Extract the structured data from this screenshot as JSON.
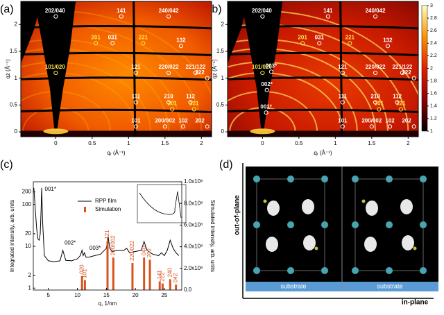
{
  "panel_labels": [
    "(a)",
    "(b)",
    "(c)",
    "(d)"
  ],
  "diagram": {
    "y_axis": "out-of-plane",
    "x_axis": "in-plane",
    "substrates": [
      "substrate",
      "substrate"
    ]
  },
  "chart_data": [
    {
      "type": "heatmap",
      "xlabel": "qᵣ (Å⁻¹)",
      "ylabel": "qz (Å⁻¹)",
      "xlim": [
        -0.48,
        2.14
      ],
      "ylim": [
        -0.09,
        2.43
      ],
      "xticks": [
        0,
        0.5,
        1,
        1.5,
        2
      ],
      "yticks": [
        0,
        0.5,
        1,
        1.5,
        2
      ],
      "peaks": [
        {
          "label": "202/040",
          "x": 0,
          "y": 2.15,
          "color": "#ffffff"
        },
        {
          "label": "141",
          "x": 0.9,
          "y": 2.15,
          "color": "#ffffff"
        },
        {
          "label": "240/042",
          "x": 1.55,
          "y": 2.15,
          "color": "#ffffff"
        },
        {
          "label": "201",
          "x": 0.55,
          "y": 1.65,
          "color": "#ffe84a"
        },
        {
          "label": "031",
          "x": 0.78,
          "y": 1.65,
          "color": "#ffffff"
        },
        {
          "label": "221",
          "x": 1.2,
          "y": 1.65,
          "color": "#ffe84a"
        },
        {
          "label": "132",
          "x": 1.72,
          "y": 1.6,
          "color": "#ffffff"
        },
        {
          "label": "101/020",
          "x": 0,
          "y": 1.1,
          "color": "#ffe84a"
        },
        {
          "label": "121",
          "x": 1.1,
          "y": 1.1,
          "color": "#ffffff"
        },
        {
          "label": "220/022",
          "x": 1.55,
          "y": 1.1,
          "color": "#ffffff"
        },
        {
          "label": "221/122",
          "x": 1.92,
          "y": 1.1,
          "color": "#ffffff"
        },
        {
          "label": "222",
          "x": 2.08,
          "y": 1.0,
          "color": "#ffffff"
        },
        {
          "label": "111",
          "x": 1.1,
          "y": 0.55,
          "color": "#ffffff"
        },
        {
          "label": "210",
          "x": 1.55,
          "y": 0.55,
          "color": "#ffffff"
        },
        {
          "label": "112",
          "x": 1.85,
          "y": 0.55,
          "color": "#ffffff"
        },
        {
          "label": "201",
          "x": 1.6,
          "y": 0.42,
          "color": "#ffe84a"
        },
        {
          "label": "221",
          "x": 1.9,
          "y": 0.42,
          "color": "#ffe84a"
        },
        {
          "label": "101",
          "x": 1.1,
          "y": 0.1,
          "color": "#ffffff"
        },
        {
          "label": "200/002",
          "x": 1.5,
          "y": 0.1,
          "color": "#ffffff"
        },
        {
          "label": "102",
          "x": 1.75,
          "y": 0.1,
          "color": "#ffffff"
        },
        {
          "label": "202",
          "x": 2.08,
          "y": 0.1,
          "color": "#ffffff"
        }
      ]
    },
    {
      "type": "heatmap",
      "xlabel": "qᵣ (Å⁻¹)",
      "ylabel": "qz (Å⁻¹)",
      "xlim": [
        -0.48,
        2.14
      ],
      "ylim": [
        -0.09,
        2.43
      ],
      "xticks": [
        0,
        0.5,
        1,
        1.5,
        2
      ],
      "yticks": [
        0,
        0.5,
        1,
        1.5,
        2
      ],
      "colorbar": {
        "lim": [
          1,
          3
        ],
        "ticks": [
          1,
          1.2,
          1.4,
          1.6,
          1.8,
          2,
          2.2,
          2.4,
          2.6,
          2.8,
          3
        ]
      },
      "peaks": [
        {
          "label": "202/040",
          "x": 0,
          "y": 2.15,
          "color": "#ffffff"
        },
        {
          "label": "141",
          "x": 0.9,
          "y": 2.15,
          "color": "#ffffff"
        },
        {
          "label": "240/042",
          "x": 1.55,
          "y": 2.15,
          "color": "#ffffff"
        },
        {
          "label": "201",
          "x": 0.55,
          "y": 1.65,
          "color": "#ffe84a"
        },
        {
          "label": "031",
          "x": 0.78,
          "y": 1.65,
          "color": "#ffffff"
        },
        {
          "label": "221",
          "x": 1.2,
          "y": 1.65,
          "color": "#ffe84a"
        },
        {
          "label": "132",
          "x": 1.72,
          "y": 1.6,
          "color": "#ffffff"
        },
        {
          "label": "101/020",
          "x": 0,
          "y": 1.1,
          "color": "#ffe84a"
        },
        {
          "label": "003*",
          "x": 0.12,
          "y": 1.12,
          "color": "#ffffff"
        },
        {
          "label": "002*",
          "x": 0.06,
          "y": 0.78,
          "color": "#ffffff"
        },
        {
          "label": "001*",
          "x": 0.05,
          "y": 0.36,
          "color": "#ffffff"
        },
        {
          "label": "121",
          "x": 1.1,
          "y": 1.1,
          "color": "#ffffff"
        },
        {
          "label": "220/022",
          "x": 1.55,
          "y": 1.1,
          "color": "#ffffff"
        },
        {
          "label": "221/122",
          "x": 1.92,
          "y": 1.1,
          "color": "#ffffff"
        },
        {
          "label": "222",
          "x": 2.08,
          "y": 1.0,
          "color": "#ffffff"
        },
        {
          "label": "111",
          "x": 1.1,
          "y": 0.55,
          "color": "#ffffff"
        },
        {
          "label": "210",
          "x": 1.55,
          "y": 0.55,
          "color": "#ffffff"
        },
        {
          "label": "112",
          "x": 1.85,
          "y": 0.55,
          "color": "#ffffff"
        },
        {
          "label": "201",
          "x": 1.6,
          "y": 0.42,
          "color": "#ffe84a"
        },
        {
          "label": "221",
          "x": 1.9,
          "y": 0.42,
          "color": "#ffe84a"
        },
        {
          "label": "101",
          "x": 1.1,
          "y": 0.1,
          "color": "#ffffff"
        },
        {
          "label": "200/002",
          "x": 1.5,
          "y": 0.1,
          "color": "#ffffff"
        },
        {
          "label": "102",
          "x": 1.75,
          "y": 0.1,
          "color": "#ffffff"
        },
        {
          "label": "202",
          "x": 2.08,
          "y": 0.1,
          "color": "#ffffff"
        }
      ]
    },
    {
      "type": "line",
      "xlabel": "q, 1/nm",
      "ylabel": "Integrated intensity, arb. units",
      "y2label": "Simulated intensity, arb. units",
      "xlim": [
        2.4,
        28
      ],
      "xticks": [
        5,
        10,
        15,
        20,
        25
      ],
      "ylim": [
        0.9,
        350
      ],
      "yticks": [
        1,
        2,
        10,
        20,
        100,
        200
      ],
      "log_y": true,
      "y2lim": [
        0,
        1000000000
      ],
      "y2ticks": [
        {
          "value": 0,
          "label": "0.0"
        },
        {
          "value": 200000000,
          "label": "2.0x10⁸"
        },
        {
          "value": 400000000,
          "label": "4.0x10⁸"
        },
        {
          "value": 600000000,
          "label": "6.0x10⁸"
        },
        {
          "value": 800000000,
          "label": "8.0x10⁸"
        },
        {
          "value": 1000000000,
          "label": "1.0x10⁹"
        }
      ],
      "series": [
        {
          "name": "RPP film",
          "color": "#000000",
          "type": "line",
          "x": [
            2.5,
            2.8,
            3.0,
            3.2,
            3.4,
            3.6,
            3.75,
            3.85,
            4.0,
            4.3,
            5,
            6,
            7,
            7.5,
            8,
            9,
            10,
            10.5,
            10.8,
            11.0,
            11.2,
            11.5,
            12,
            13,
            14,
            15,
            15.3,
            15.6,
            16,
            17,
            18,
            18.5,
            19,
            20,
            21,
            21.5,
            22,
            23,
            24,
            24.5,
            25,
            25.5,
            26,
            26.5,
            27,
            27.5
          ],
          "values": [
            250,
            60,
            25,
            15,
            14,
            20,
            80,
            250,
            40,
            6,
            4.5,
            4.3,
            4.5,
            8,
            4.6,
            4.5,
            5,
            6,
            8,
            6,
            7,
            5.5,
            5.5,
            6,
            6.5,
            9,
            17,
            9,
            7.5,
            8,
            8,
            9,
            7,
            7.5,
            8,
            13,
            8,
            6.5,
            6,
            7,
            6,
            8,
            14,
            9,
            7,
            6
          ]
        },
        {
          "name": "Simulation",
          "color": "#d9531e",
          "type": "bar",
          "axis": "y2",
          "x": [
            10.8,
            11.3,
            15.2,
            16.2,
            19.5,
            21.5,
            22.5,
            24.2,
            24.7,
            26,
            27
          ],
          "values": [
            130000000,
            90000000,
            450000000,
            300000000,
            250000000,
            300000000,
            280000000,
            80000000,
            60000000,
            100000000,
            50000000
          ],
          "peak_labels": [
            "020",
            "101",
            "121",
            "200/002",
            "220/022",
            "040",
            "202",
            "141",
            "222",
            "240",
            "042"
          ]
        }
      ],
      "annotations": [
        {
          "text": "001*",
          "x": 3.9,
          "y": 230
        },
        {
          "text": "002*",
          "x": 7.3,
          "y": 12
        },
        {
          "text": "003*",
          "x": 11.6,
          "y": 9
        }
      ]
    }
  ]
}
